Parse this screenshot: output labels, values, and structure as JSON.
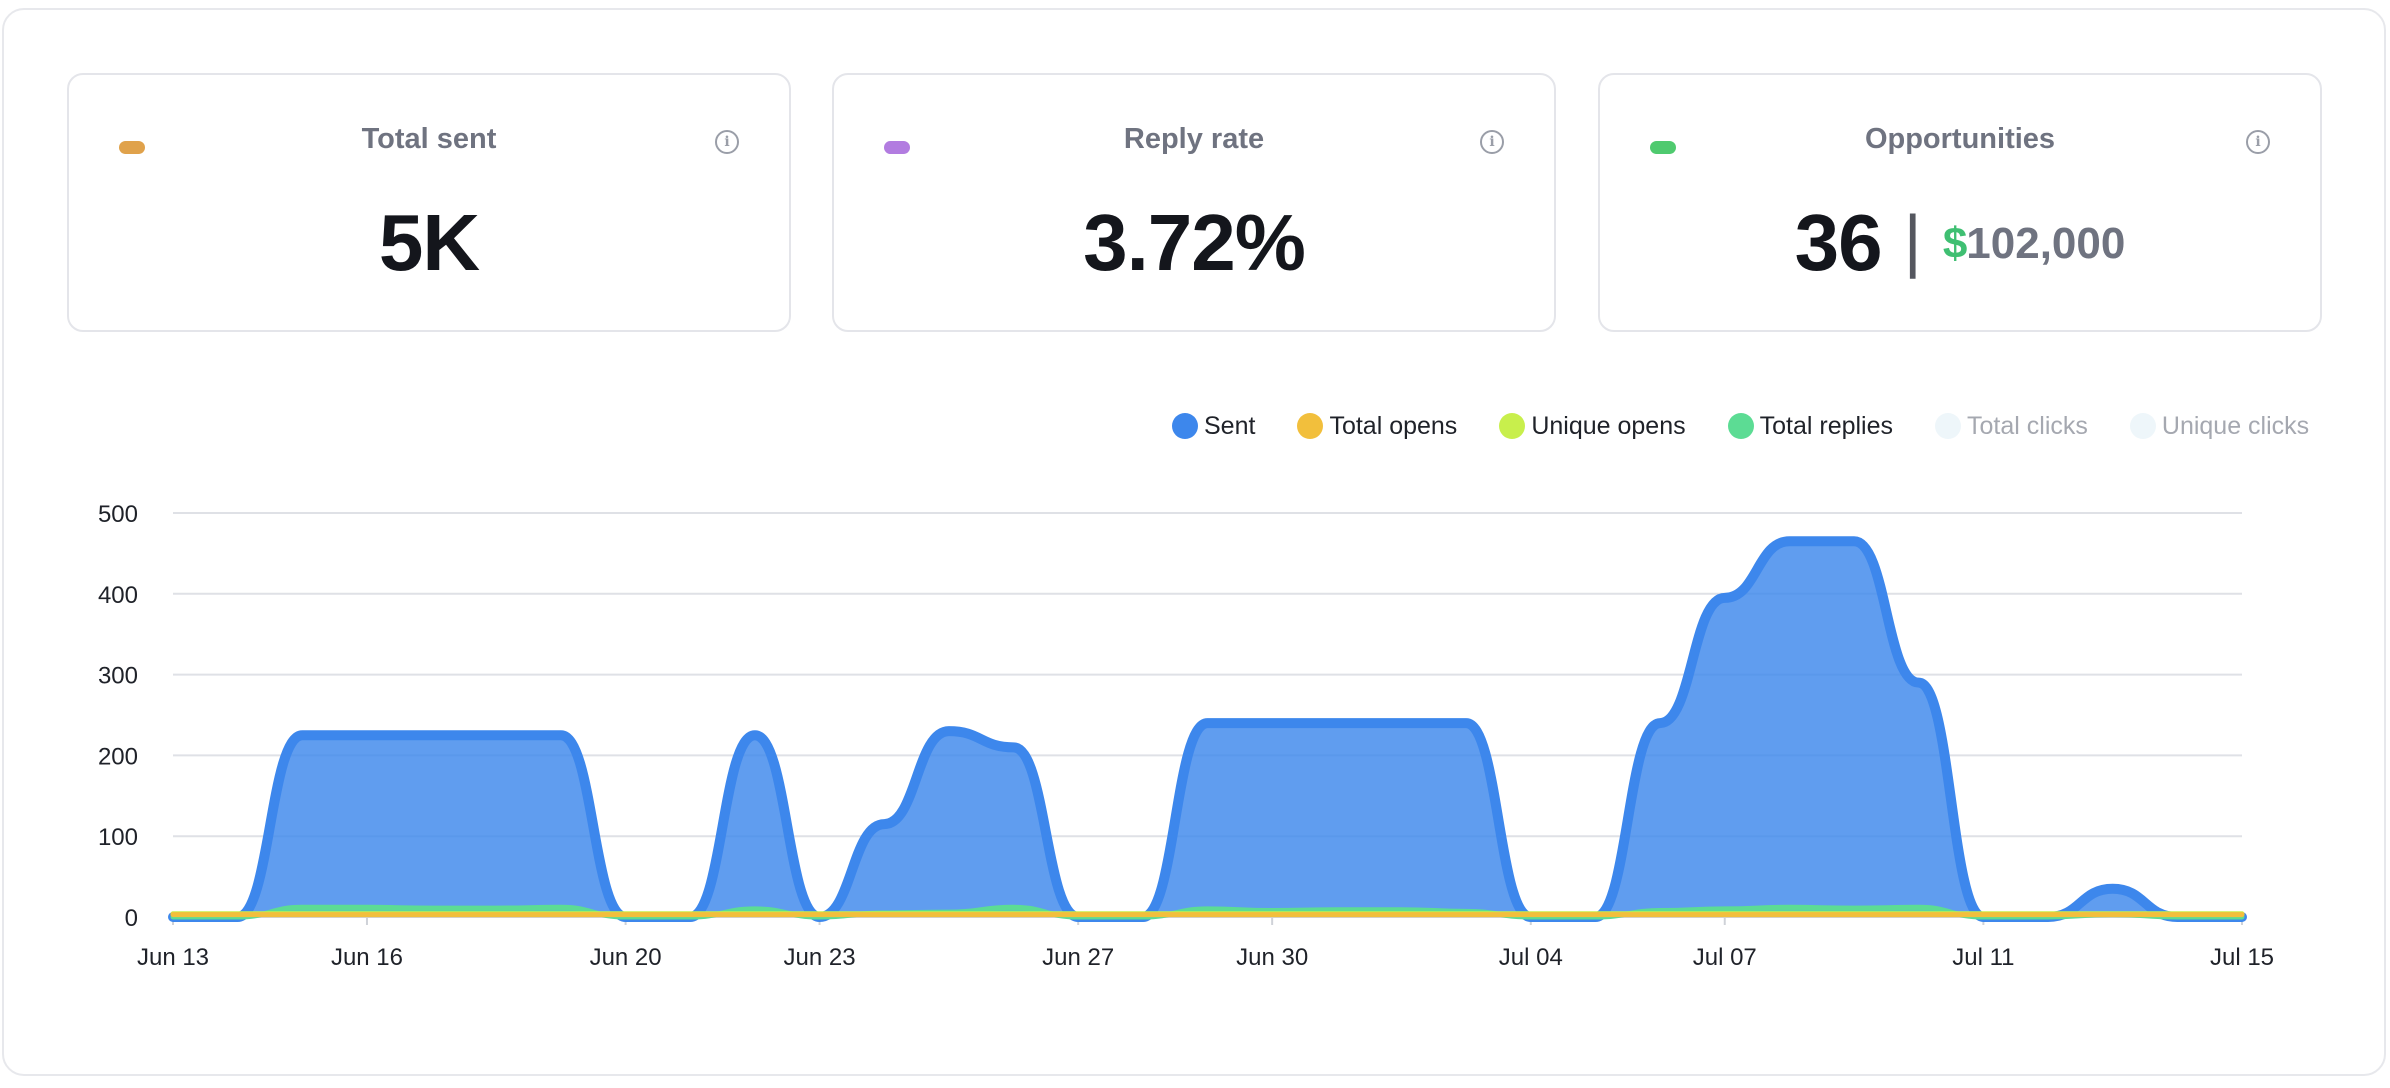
{
  "cards": [
    {
      "title": "Total sent",
      "value": "5K",
      "dot_color": "#e0a24b",
      "icon": "info-icon"
    },
    {
      "title": "Reply rate",
      "value": "3.72%",
      "dot_color": "#b27ce0",
      "icon": "info-icon"
    },
    {
      "title": "Opportunities",
      "value": "36",
      "separator": "|",
      "currency_symbol": "$",
      "amount": "102,000",
      "dot_color": "#4fca6f",
      "icon": "info-icon"
    }
  ],
  "legend": [
    {
      "label": "Sent",
      "color": "#3d87ec",
      "active": true
    },
    {
      "label": "Total opens",
      "color": "#f2bf3c",
      "active": true
    },
    {
      "label": "Unique opens",
      "color": "#c8ef4c",
      "active": true
    },
    {
      "label": "Total replies",
      "color": "#5cdc94",
      "active": true
    },
    {
      "label": "Total clicks",
      "color": "#eef6fa",
      "active": false
    },
    {
      "label": "Unique clicks",
      "color": "#eef6fa",
      "active": false
    }
  ],
  "chart_data": {
    "type": "area",
    "x_ticks": [
      "Jun 13",
      "Jun 16",
      "Jun 20",
      "Jun 23",
      "Jun 27",
      "Jun 30",
      "Jul 04",
      "Jul 07",
      "Jul 11",
      "Jul 15"
    ],
    "ylim": [
      0,
      500
    ],
    "y_ticks": [
      0,
      100,
      200,
      300,
      400,
      500
    ],
    "grid": true,
    "legend_position": "top-right",
    "x_days": [
      0,
      1,
      2,
      3,
      4,
      5,
      6,
      7,
      8,
      9,
      10,
      11,
      12,
      13,
      14,
      15,
      16,
      17,
      18,
      19,
      20,
      21,
      22,
      23,
      24,
      25,
      26,
      27,
      28,
      29,
      30,
      31,
      32
    ],
    "series": [
      {
        "name": "Sent",
        "color": "#3d87ec",
        "values": [
          0,
          0,
          225,
          225,
          225,
          225,
          225,
          0,
          0,
          225,
          0,
          115,
          230,
          210,
          0,
          0,
          240,
          240,
          240,
          240,
          240,
          0,
          0,
          240,
          395,
          465,
          465,
          290,
          0,
          0,
          35,
          0,
          0
        ]
      },
      {
        "name": "Total replies",
        "color": "#5cdc94",
        "values": [
          0,
          0,
          12,
          12,
          11,
          11,
          12,
          0,
          0,
          10,
          0,
          5,
          6,
          12,
          0,
          0,
          10,
          8,
          9,
          9,
          7,
          0,
          0,
          8,
          10,
          12,
          11,
          12,
          0,
          0,
          3,
          0,
          0
        ]
      },
      {
        "name": "Unique opens",
        "color": "#c8ef4c",
        "values": [
          4,
          4,
          4,
          4,
          4,
          4,
          4,
          4,
          4,
          4,
          4,
          4,
          4,
          4,
          4,
          4,
          4,
          4,
          4,
          4,
          4,
          4,
          4,
          4,
          4,
          4,
          4,
          4,
          4,
          4,
          4,
          4,
          4
        ]
      },
      {
        "name": "Total opens",
        "color": "#f2bf3c",
        "values": [
          3,
          3,
          3,
          3,
          3,
          3,
          3,
          3,
          3,
          3,
          3,
          3,
          3,
          3,
          3,
          3,
          3,
          3,
          3,
          3,
          3,
          3,
          3,
          3,
          3,
          3,
          3,
          3,
          3,
          3,
          3,
          3,
          3
        ]
      }
    ]
  }
}
